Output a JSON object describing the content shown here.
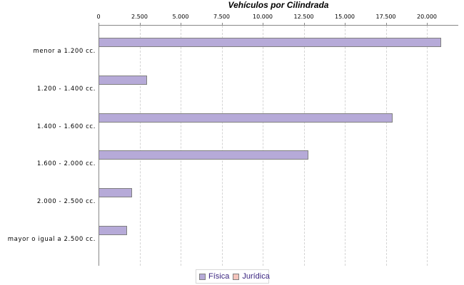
{
  "chart_data": {
    "type": "bar",
    "orientation": "horizontal",
    "title": "Vehículos por Cilindrada",
    "xlabel": "",
    "ylabel": "",
    "xlim": [
      0,
      21900
    ],
    "x_ticks": [
      "0",
      "2.500",
      "5.000",
      "7.500",
      "10.000",
      "12.500",
      "15.000",
      "17.500",
      "20.000"
    ],
    "grid": true,
    "legend_position": "bottom",
    "categories": [
      "menor a 1.200 cc.",
      "1.200 - 1.400 cc.",
      "1.400 - 1.600 cc.",
      "1.600 - 2.000 cc.",
      "2.000 - 2.500 cc.",
      "mayor o igual a 2.500 cc."
    ],
    "series": [
      {
        "name": "Física",
        "color": "#b6aad8",
        "values": [
          20870,
          2940,
          17900,
          12770,
          2060,
          1730
        ]
      },
      {
        "name": "Jurídica",
        "color": "#f4c4bc",
        "values": [
          0,
          0,
          0,
          0,
          0,
          0
        ]
      }
    ]
  }
}
